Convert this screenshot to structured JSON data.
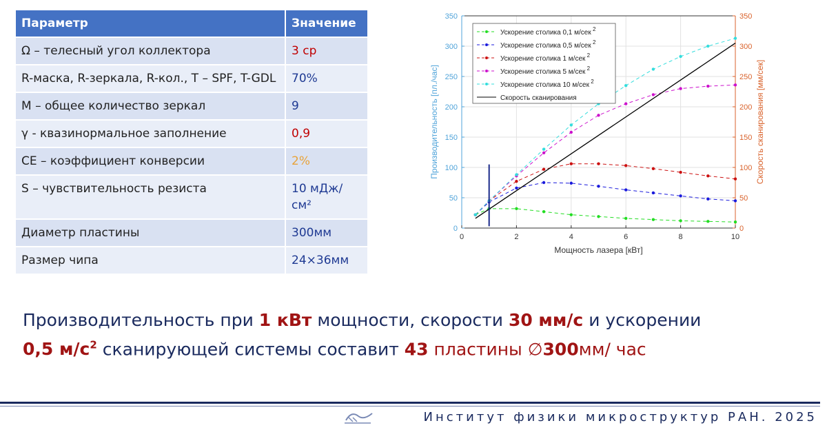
{
  "table": {
    "header": [
      "Параметр",
      "Значение"
    ],
    "rows": [
      {
        "param": "Ω – телесный угол коллектора",
        "value": "3 ср",
        "value_color": "#c00000"
      },
      {
        "param": "R-маска, R-зеркала, R-кол., T – SPF, T-GDL",
        "value": "70%",
        "value_color": "#1f3a93"
      },
      {
        "param": "M – общее количество зеркал",
        "value": "9",
        "value_color": "#1f3a93"
      },
      {
        "param": "γ - квазинормальное заполнение",
        "value": "0,9",
        "value_color": "#c00000"
      },
      {
        "param": "CE – коэффициент конверсии",
        "value": "2%",
        "value_color": "#e8a33a"
      },
      {
        "param": "S – чувствительность резиста",
        "value": "10 мДж/см²",
        "value_color": "#1f3a93"
      },
      {
        "param": "Диаметр пластины",
        "value": "300мм",
        "value_color": "#1f3a93"
      },
      {
        "param": "Размер чипа",
        "value": "24×36мм",
        "value_color": "#1f3a93"
      }
    ]
  },
  "chart_data": {
    "type": "line",
    "xlabel": "Мощность лазера [кВт]",
    "ylabel_left": "Производительность [пл./час]",
    "ylabel_right": "Скорость сканирования [мм/сек]",
    "xlim": [
      0,
      10
    ],
    "ylim_left": [
      0,
      350
    ],
    "ylim_right": [
      0,
      350
    ],
    "xticks": [
      0,
      2,
      4,
      6,
      8,
      10
    ],
    "yticks": [
      0,
      50,
      100,
      150,
      200,
      250,
      300,
      350
    ],
    "grid": true,
    "legend_position": "top-left",
    "x": [
      0.5,
      1,
      2,
      3,
      4,
      5,
      6,
      7,
      8,
      9,
      10
    ],
    "series": [
      {
        "name": "Ускорение столика 0,1 м/сек",
        "color": "#22dd22",
        "dash": "dashed",
        "values": [
          22,
          32,
          32,
          27,
          22,
          19,
          16,
          14,
          12,
          11,
          10
        ]
      },
      {
        "name": "Ускорение столика 0,5 м/сек",
        "color": "#1a1adc",
        "dash": "dashed",
        "values": [
          22,
          43,
          66,
          75,
          74,
          69,
          63,
          58,
          53,
          48,
          45
        ]
      },
      {
        "name": "Ускорение столика 1 м/сек",
        "color": "#cc1111",
        "dash": "dashed",
        "values": [
          22,
          45,
          77,
          97,
          106,
          106,
          103,
          98,
          92,
          86,
          81
        ]
      },
      {
        "name": "Ускорение столика 5 м/сек",
        "color": "#cc11cc",
        "dash": "dashed",
        "values": [
          22,
          45,
          86,
          124,
          158,
          186,
          205,
          220,
          230,
          234,
          236
        ]
      },
      {
        "name": "Ускорение столика 10 м/сек",
        "color": "#33dddd",
        "dash": "dashed",
        "values": [
          22,
          45,
          88,
          130,
          170,
          205,
          235,
          262,
          283,
          300,
          313
        ]
      },
      {
        "name": "Скорость сканирования",
        "color": "#000000",
        "dash": "solid",
        "axis": "right",
        "x": [
          0.5,
          10
        ],
        "values": [
          16,
          305
        ]
      }
    ],
    "legend_superscript": "2",
    "marker": {
      "x": 1,
      "y_range": [
        3,
        105
      ],
      "color": "#1a2a8a"
    }
  },
  "summary": {
    "p1": "Производительность при ",
    "h1": "1 кВт",
    "p2": " мощности, скорости ",
    "h2": "30 мм/с",
    "p3": " и ускорении",
    "h3": "0,5 м/с",
    "h3sup": "2",
    "p4": "  сканирующей системы составит ",
    "h4": "43",
    "p5": " пластины ",
    "h5a": "∅",
    "h5b": "300",
    "h5c": "мм/ час"
  },
  "footer": {
    "institute": "Институт физики микроструктур РАН. 2025"
  }
}
